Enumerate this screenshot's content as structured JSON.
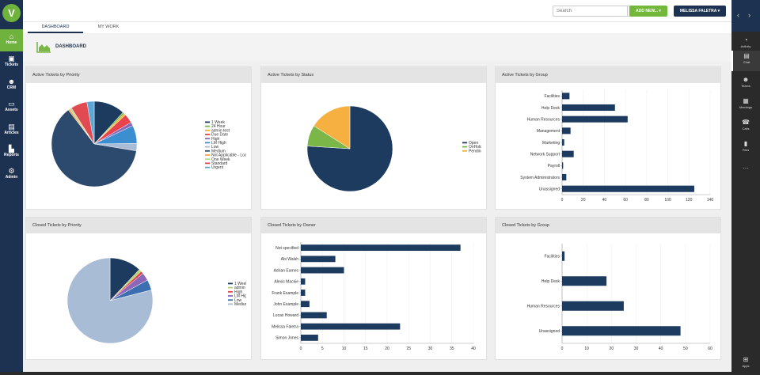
{
  "sidebar": {
    "items": [
      {
        "label": "Home",
        "icon": "home-icon"
      },
      {
        "label": "Tickets",
        "icon": "ticket-icon"
      },
      {
        "label": "CRM",
        "icon": "people-icon"
      },
      {
        "label": "Assets",
        "icon": "laptop-icon"
      },
      {
        "label": "Articles",
        "icon": "document-icon"
      },
      {
        "label": "Reports",
        "icon": "chart-icon"
      },
      {
        "label": "Admin",
        "icon": "gears-icon"
      }
    ]
  },
  "topbar": {
    "search_placeholder": "Search",
    "add_new": "ADD NEW... ▾",
    "user": "MELISSA FALETRA ▾"
  },
  "tabs": [
    "DASHBOARD",
    "MY WORK"
  ],
  "page_title": "DASHBOARD",
  "teams": {
    "items": [
      "Activity",
      "Chat",
      "Teams",
      "Meetings",
      "Calls",
      "Files"
    ],
    "apps_label": "Apps"
  },
  "colors": {
    "navy": "#1d3251",
    "green": "#73b83a"
  },
  "chart_data": [
    {
      "type": "pie",
      "title": "Active Tickets by Priority",
      "labels": [
        "1 Week",
        "24 Hour",
        "admin test",
        "Due Date",
        "High",
        "LM High",
        "Low",
        "Medium",
        "Not Applicable - Loan",
        "One Week",
        "Standard",
        "Urgent"
      ],
      "values": [
        17,
        1,
        1,
        5,
        2,
        10,
        4,
        90,
        1,
        1,
        9,
        4
      ],
      "colors": [
        "#1d3a5f",
        "#7ab648",
        "#f0b22b",
        "#e8434a",
        "#8e66b8",
        "#3b8fd0",
        "#a9bcd6",
        "#2c4a6e",
        "#f6a54d",
        "#b3d98b",
        "#e24a52",
        "#5ba7d6"
      ]
    },
    {
      "type": "pie",
      "title": "Active Tickets by Status",
      "labels": [
        "Open",
        "OnHold",
        "Pending"
      ],
      "values": [
        76,
        8,
        16
      ],
      "colors": [
        "#1d3a5f",
        "#7ab648",
        "#f5b041"
      ]
    },
    {
      "type": "bar",
      "orientation": "horizontal",
      "title": "Active Tickets by Group",
      "categories": [
        "Facilities",
        "Help Desk",
        "Human Resources",
        "Management",
        "Marketing",
        "Network Support",
        "Payroll",
        "System Administrators",
        "Unassigned"
      ],
      "values": [
        7,
        50,
        62,
        8,
        2,
        11,
        1,
        4,
        125
      ],
      "xlim": [
        0,
        140
      ],
      "xticks": [
        0,
        20,
        40,
        60,
        80,
        100,
        120,
        140
      ]
    },
    {
      "type": "pie",
      "title": "Closed Tickets by Priority",
      "labels": [
        "1 Week",
        "admin test",
        "High",
        "LM High",
        "Low",
        "Medium"
      ],
      "values": [
        12,
        1,
        1,
        3,
        4,
        79
      ],
      "colors": [
        "#1d3a5f",
        "#b5d36b",
        "#e8434a",
        "#8e66b8",
        "#3b6fb0",
        "#a9bcd6"
      ]
    },
    {
      "type": "bar",
      "orientation": "horizontal",
      "title": "Closed Tickets by Owner",
      "categories": [
        "Not specified",
        "Abi Walsh",
        "Adrian Eames",
        "Alexis Mackie",
        "Frank Example",
        "John Example",
        "Lucas Howard",
        "Melissa Faletra",
        "Simon Jones"
      ],
      "values": [
        37,
        8,
        10,
        1,
        1,
        2,
        6,
        23,
        4
      ],
      "xlim": [
        0,
        40
      ],
      "xticks": [
        0,
        5,
        10,
        15,
        20,
        25,
        30,
        35,
        40
      ]
    },
    {
      "type": "bar",
      "orientation": "horizontal",
      "title": "Closed Tickets by Group",
      "categories": [
        "Facilities",
        "Help Desk",
        "Human Resources",
        "Unassigned"
      ],
      "values": [
        1,
        18,
        25,
        48
      ],
      "xlim": [
        0,
        60
      ],
      "xticks": [
        0,
        10,
        20,
        30,
        40,
        50,
        60
      ]
    }
  ]
}
